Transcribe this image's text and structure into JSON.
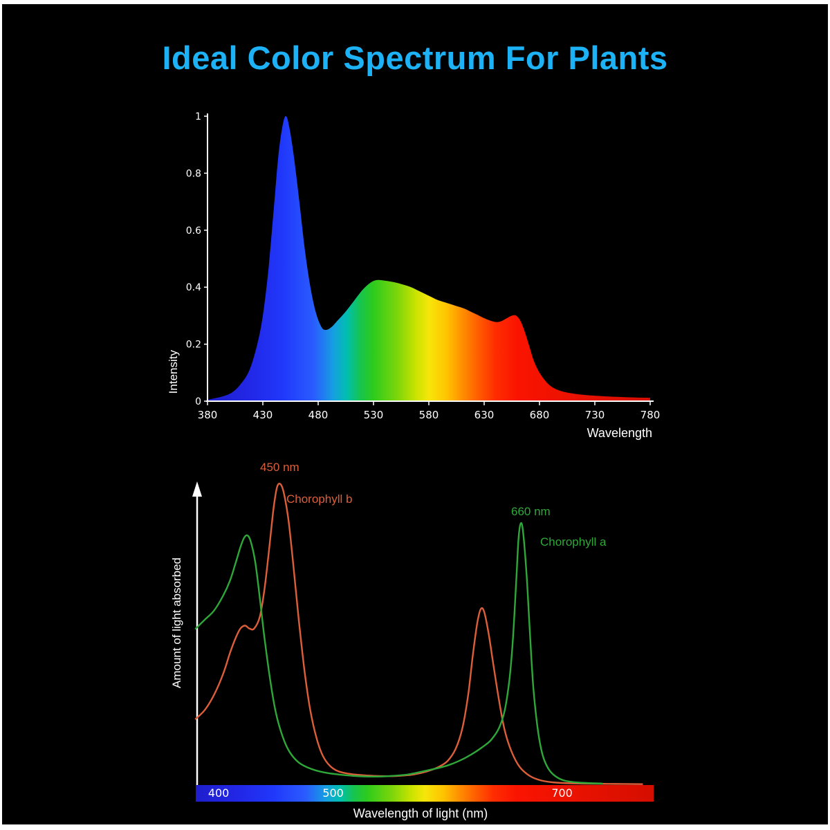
{
  "page": {
    "title": "Ideal Color Spectrum For Plants"
  },
  "colors": {
    "title": "#1cb2f5",
    "axis": "#ffffff",
    "background": "#000000",
    "frame": "#ffffff",
    "chlorophyll_b": "#dd5f3a",
    "chlorophyll_a": "#2fa83a"
  },
  "chart_data": [
    {
      "type": "area",
      "title": "",
      "xlabel": "Wavelength",
      "ylabel": "Intensity",
      "xlim": [
        380,
        780
      ],
      "ylim": [
        0,
        1
      ],
      "grid": false,
      "x_ticks": [
        380,
        430,
        480,
        530,
        580,
        630,
        680,
        730,
        780
      ],
      "y_ticks": [
        {
          "v": 0,
          "label": "0"
        },
        {
          "v": 0.2,
          "label": "0.2"
        },
        {
          "v": 0.4,
          "label": "0.4"
        },
        {
          "v": 0.6,
          "label": "0.6"
        },
        {
          "v": 0.8,
          "label": "0.8"
        },
        {
          "v": 1,
          "label": "1"
        }
      ],
      "gradient_stops": [
        [
          0.0,
          "#1e1ecc"
        ],
        [
          0.1,
          "#2228e8"
        ],
        [
          0.17,
          "#2038fa"
        ],
        [
          0.24,
          "#2a5cff"
        ],
        [
          0.285,
          "#15a0e0"
        ],
        [
          0.315,
          "#00bfae"
        ],
        [
          0.345,
          "#16c44f"
        ],
        [
          0.375,
          "#2ecb1c"
        ],
        [
          0.43,
          "#7ed60a"
        ],
        [
          0.47,
          "#c8e300"
        ],
        [
          0.5,
          "#f6e60a"
        ],
        [
          0.54,
          "#ffc400"
        ],
        [
          0.575,
          "#ff9000"
        ],
        [
          0.61,
          "#ff5f00"
        ],
        [
          0.65,
          "#ff2d00"
        ],
        [
          0.7,
          "#fa1400"
        ],
        [
          1.0,
          "#d40e00"
        ]
      ],
      "points": [
        [
          380,
          0.005
        ],
        [
          392,
          0.015
        ],
        [
          402,
          0.03
        ],
        [
          410,
          0.06
        ],
        [
          418,
          0.11
        ],
        [
          425,
          0.2
        ],
        [
          430,
          0.3
        ],
        [
          435,
          0.46
        ],
        [
          440,
          0.68
        ],
        [
          444,
          0.86
        ],
        [
          448,
          0.97
        ],
        [
          451,
          1.0
        ],
        [
          454,
          0.96
        ],
        [
          458,
          0.86
        ],
        [
          463,
          0.7
        ],
        [
          468,
          0.53
        ],
        [
          473,
          0.4
        ],
        [
          478,
          0.31
        ],
        [
          483,
          0.26
        ],
        [
          487,
          0.25
        ],
        [
          492,
          0.26
        ],
        [
          498,
          0.285
        ],
        [
          505,
          0.315
        ],
        [
          512,
          0.35
        ],
        [
          520,
          0.39
        ],
        [
          527,
          0.415
        ],
        [
          533,
          0.425
        ],
        [
          540,
          0.423
        ],
        [
          548,
          0.418
        ],
        [
          556,
          0.41
        ],
        [
          564,
          0.4
        ],
        [
          572,
          0.385
        ],
        [
          580,
          0.37
        ],
        [
          588,
          0.355
        ],
        [
          596,
          0.345
        ],
        [
          604,
          0.335
        ],
        [
          612,
          0.325
        ],
        [
          620,
          0.31
        ],
        [
          628,
          0.295
        ],
        [
          634,
          0.285
        ],
        [
          640,
          0.278
        ],
        [
          645,
          0.28
        ],
        [
          650,
          0.29
        ],
        [
          655,
          0.3
        ],
        [
          659,
          0.3
        ],
        [
          663,
          0.28
        ],
        [
          667,
          0.24
        ],
        [
          671,
          0.19
        ],
        [
          675,
          0.14
        ],
        [
          680,
          0.1
        ],
        [
          686,
          0.068
        ],
        [
          692,
          0.048
        ],
        [
          700,
          0.035
        ],
        [
          710,
          0.027
        ],
        [
          720,
          0.022
        ],
        [
          735,
          0.018
        ],
        [
          750,
          0.015
        ],
        [
          765,
          0.013
        ],
        [
          780,
          0.012
        ]
      ]
    },
    {
      "type": "line",
      "title": "",
      "xlabel": "Wavelength of light (nm)",
      "ylabel": "Amount of light absorbed",
      "xlim": [
        380,
        780
      ],
      "ylim": [
        0,
        1
      ],
      "grid": false,
      "x_ticks": [
        {
          "v": 400,
          "label": "400"
        },
        {
          "v": 500,
          "label": "500"
        },
        {
          "v": 700,
          "label": "700"
        }
      ],
      "series": [
        {
          "name": "Chorophyll b",
          "color": "#dd5f3a",
          "peak_label": "450 nm",
          "points": [
            [
              380,
              0.22
            ],
            [
              388,
              0.25
            ],
            [
              396,
              0.3
            ],
            [
              404,
              0.37
            ],
            [
              410,
              0.44
            ],
            [
              415,
              0.49
            ],
            [
              419,
              0.52
            ],
            [
              423,
              0.53
            ],
            [
              427,
              0.52
            ],
            [
              431,
              0.52
            ],
            [
              436,
              0.56
            ],
            [
              440,
              0.65
            ],
            [
              444,
              0.78
            ],
            [
              448,
              0.92
            ],
            [
              451,
              0.99
            ],
            [
              454,
              1.0
            ],
            [
              457,
              0.97
            ],
            [
              461,
              0.88
            ],
            [
              465,
              0.74
            ],
            [
              470,
              0.55
            ],
            [
              475,
              0.38
            ],
            [
              480,
              0.25
            ],
            [
              486,
              0.15
            ],
            [
              492,
              0.09
            ],
            [
              500,
              0.055
            ],
            [
              510,
              0.04
            ],
            [
              525,
              0.033
            ],
            [
              540,
              0.03
            ],
            [
              555,
              0.03
            ],
            [
              570,
              0.035
            ],
            [
              582,
              0.045
            ],
            [
              592,
              0.06
            ],
            [
              600,
              0.08
            ],
            [
              607,
              0.12
            ],
            [
              613,
              0.19
            ],
            [
              618,
              0.3
            ],
            [
              622,
              0.43
            ],
            [
              626,
              0.54
            ],
            [
              629,
              0.585
            ],
            [
              632,
              0.575
            ],
            [
              636,
              0.5
            ],
            [
              640,
              0.4
            ],
            [
              645,
              0.28
            ],
            [
              650,
              0.18
            ],
            [
              656,
              0.11
            ],
            [
              663,
              0.06
            ],
            [
              672,
              0.03
            ],
            [
              682,
              0.015
            ],
            [
              695,
              0.008
            ],
            [
              715,
              0.005
            ],
            [
              740,
              0.004
            ],
            [
              770,
              0.003
            ]
          ]
        },
        {
          "name": "Chorophyll a",
          "color": "#2fa83a",
          "peak_label": "660 nm",
          "points": [
            [
              380,
              0.52
            ],
            [
              388,
              0.55
            ],
            [
              396,
              0.58
            ],
            [
              404,
              0.63
            ],
            [
              410,
              0.68
            ],
            [
              415,
              0.74
            ],
            [
              419,
              0.79
            ],
            [
              422,
              0.82
            ],
            [
              425,
              0.83
            ],
            [
              428,
              0.81
            ],
            [
              432,
              0.74
            ],
            [
              436,
              0.62
            ],
            [
              440,
              0.49
            ],
            [
              445,
              0.35
            ],
            [
              450,
              0.24
            ],
            [
              456,
              0.16
            ],
            [
              462,
              0.11
            ],
            [
              470,
              0.075
            ],
            [
              480,
              0.055
            ],
            [
              492,
              0.042
            ],
            [
              505,
              0.035
            ],
            [
              520,
              0.03
            ],
            [
              535,
              0.028
            ],
            [
              550,
              0.03
            ],
            [
              565,
              0.035
            ],
            [
              578,
              0.045
            ],
            [
              590,
              0.055
            ],
            [
              600,
              0.065
            ],
            [
              610,
              0.08
            ],
            [
              620,
              0.1
            ],
            [
              630,
              0.125
            ],
            [
              638,
              0.15
            ],
            [
              645,
              0.19
            ],
            [
              650,
              0.25
            ],
            [
              654,
              0.35
            ],
            [
              657,
              0.48
            ],
            [
              660,
              0.68
            ],
            [
              662,
              0.82
            ],
            [
              664,
              0.87
            ],
            [
              666,
              0.84
            ],
            [
              669,
              0.7
            ],
            [
              672,
              0.5
            ],
            [
              675,
              0.32
            ],
            [
              679,
              0.18
            ],
            [
              683,
              0.1
            ],
            [
              688,
              0.055
            ],
            [
              694,
              0.03
            ],
            [
              702,
              0.015
            ],
            [
              715,
              0.008
            ],
            [
              735,
              0.005
            ]
          ]
        }
      ]
    }
  ]
}
